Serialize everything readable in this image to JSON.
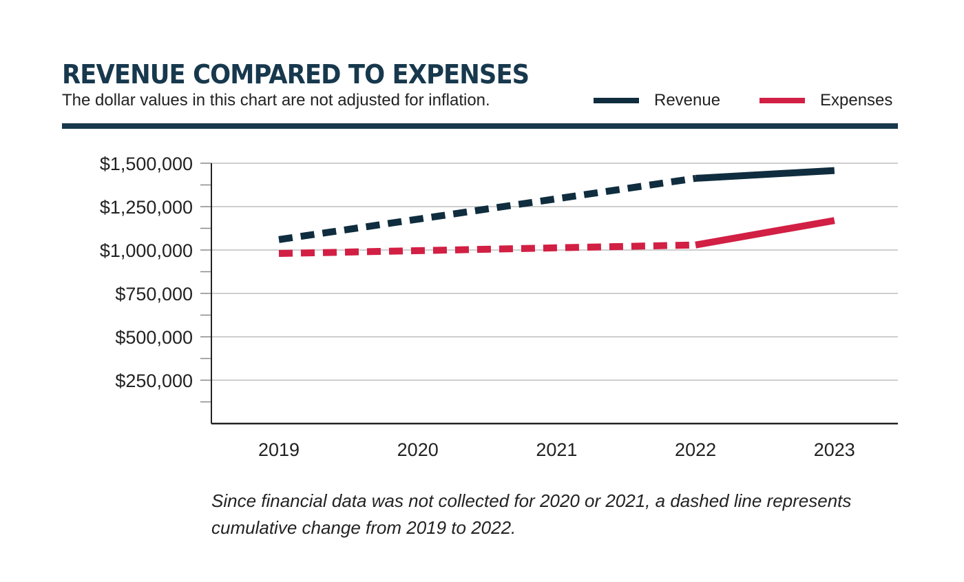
{
  "chart_data": {
    "type": "line",
    "title": "REVENUE COMPARED TO EXPENSES",
    "subtitle": "The dollar values in this chart are not adjusted for inflation.",
    "categories": [
      "2019",
      "2020",
      "2021",
      "2022",
      "2023"
    ],
    "x_positions": [
      2019,
      2022,
      2023
    ],
    "ylim": [
      0,
      1500000
    ],
    "yticks": [
      250000,
      500000,
      750000,
      1000000,
      1250000,
      1500000
    ],
    "ytick_labels": [
      "$250,000",
      "$500,000",
      "$750,000",
      "$1,000,000",
      "$1,250,000",
      "$1,500,000"
    ],
    "grid": true,
    "legend_position": "top-right",
    "series": [
      {
        "name": "Revenue",
        "color": "#0f2d3e",
        "x": [
          2019,
          2022,
          2023
        ],
        "values": [
          1060000,
          1413000,
          1458000
        ]
      },
      {
        "name": "Expenses",
        "color": "#d21f44",
        "x": [
          2019,
          2022,
          2023
        ],
        "values": [
          980000,
          1029000,
          1170000
        ]
      }
    ],
    "dashed_segment": [
      2019,
      2022
    ],
    "annotation": "Since financial data was not collected for 2020 or 2021, a dashed line represents cumulative change from 2019 to 2022."
  },
  "colors": {
    "rule": "#17384d",
    "grid": "#bdbdbd",
    "axis": "#222222"
  }
}
